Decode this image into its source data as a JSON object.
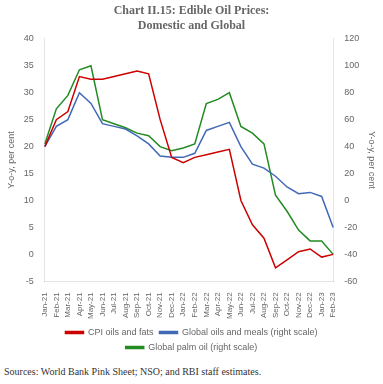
{
  "chart_data": {
    "type": "line",
    "title": "Chart II.15: Edible Oil Prices:\nDomestic and Global",
    "y_label": "Y-o-y, per cent",
    "y2_label": "Y-o-y, per cent",
    "annotations": [
      "Sources: World Bank Pink Sheet; NSO; and RBI staff estimates."
    ],
    "categories": [
      "Jan-21",
      "Feb-21",
      "Mar-21",
      "Apr-21",
      "May-21",
      "Jun-21",
      "Jul-21",
      "Aug-21",
      "Sep-21",
      "Oct-21",
      "Nov-21",
      "Dec-21",
      "Jan-22",
      "Feb-22",
      "Mar-22",
      "Apr-22",
      "May-22",
      "Jun-22",
      "Jul-22",
      "Aug-22",
      "Sep-22",
      "Oct-22",
      "Nov-22",
      "Dec-22",
      "Jan-23",
      "Feb-23"
    ],
    "series": [
      {
        "name": "CPI oils and fats",
        "color": "#cc0000",
        "values": [
          20.0,
          25.0,
          26.5,
          33.0,
          32.5,
          32.5,
          33.0,
          33.5,
          34.0,
          33.5,
          25.0,
          18.0,
          17.0,
          18.0,
          18.5,
          19.0,
          19.5,
          10.0,
          5.5,
          3.0,
          -2.5,
          -1.0,
          0.5,
          1.0,
          -0.5,
          0.0
        ]
      },
      {
        "name": "Global oils and meals (right scale)",
        "color": "#4169b8",
        "axis": "y2",
        "values": [
          40.0,
          55.0,
          60.0,
          80.0,
          72.0,
          57.0,
          55.0,
          53.0,
          48.0,
          42.0,
          33.0,
          32.0,
          32.0,
          35.0,
          52.0,
          55.0,
          58.0,
          40.0,
          27.0,
          24.0,
          18.0,
          10.0,
          5.0,
          6.0,
          3.0,
          -20.0
        ]
      },
      {
        "name": "Global palm oil (right scale)",
        "color": "#228B22",
        "axis": "y2",
        "values": [
          42.0,
          68.0,
          78.0,
          97.0,
          100.0,
          60.0,
          57.0,
          54.0,
          50.0,
          48.0,
          40.0,
          37.0,
          39.0,
          42.0,
          72.0,
          75.0,
          80.0,
          55.0,
          50.0,
          42.0,
          4.0,
          -8.0,
          -22.0,
          -30.0,
          -30.0,
          -40.0
        ]
      }
    ],
    "ylim": [
      -5,
      40
    ],
    "yticks": [
      -5,
      0,
      5,
      10,
      15,
      20,
      25,
      30,
      35,
      40
    ],
    "y2lim": [
      -60,
      120
    ],
    "y2ticks": [
      -60,
      -40,
      -20,
      0,
      20,
      40,
      60,
      80,
      100,
      120
    ],
    "grid": false,
    "legend": "bottom"
  }
}
